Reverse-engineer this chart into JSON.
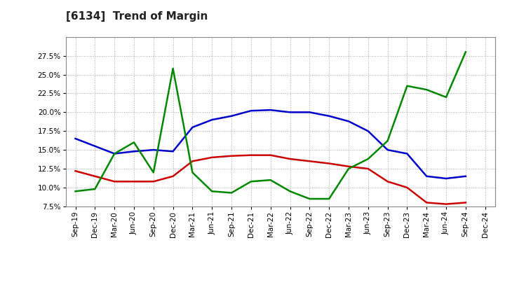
{
  "title": "[6134]  Trend of Margin",
  "x_labels": [
    "Sep-19",
    "Dec-19",
    "Mar-20",
    "Jun-20",
    "Sep-20",
    "Dec-20",
    "Mar-21",
    "Jun-21",
    "Sep-21",
    "Dec-21",
    "Mar-22",
    "Jun-22",
    "Sep-22",
    "Dec-22",
    "Mar-23",
    "Jun-23",
    "Sep-23",
    "Dec-23",
    "Mar-24",
    "Jun-24",
    "Sep-24",
    "Dec-24"
  ],
  "ordinary_income": [
    16.5,
    15.5,
    14.5,
    14.8,
    15.0,
    14.8,
    18.0,
    19.0,
    19.5,
    20.2,
    20.3,
    20.0,
    20.0,
    19.5,
    18.8,
    17.5,
    15.0,
    14.5,
    11.5,
    11.2,
    11.5,
    null
  ],
  "net_income": [
    12.2,
    11.5,
    10.8,
    10.8,
    10.8,
    11.5,
    13.5,
    14.0,
    14.2,
    14.3,
    14.3,
    13.8,
    13.5,
    13.2,
    12.8,
    12.5,
    10.8,
    10.0,
    8.0,
    7.8,
    8.0,
    null
  ],
  "operating_cashflow": [
    9.5,
    9.8,
    14.5,
    16.0,
    12.0,
    25.8,
    12.0,
    9.5,
    9.3,
    10.8,
    11.0,
    9.5,
    8.5,
    8.5,
    12.5,
    13.8,
    16.2,
    23.5,
    23.0,
    22.0,
    28.0,
    null
  ],
  "ylim": [
    7.5,
    30.0
  ],
  "yticks": [
    7.5,
    10.0,
    12.5,
    15.0,
    17.5,
    20.0,
    22.5,
    25.0,
    27.5
  ],
  "line_colors": {
    "ordinary_income": "#0000cc",
    "net_income": "#cc0000",
    "operating_cashflow": "#008800"
  },
  "background_color": "#ffffff",
  "grid_color": "#aaaaaa"
}
